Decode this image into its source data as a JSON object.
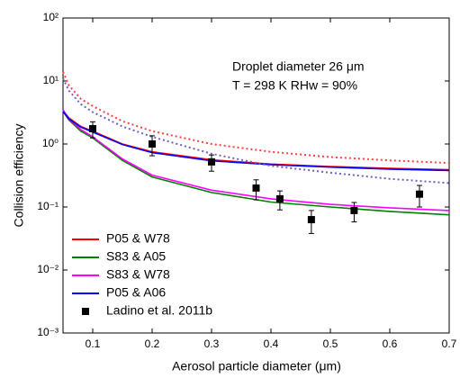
{
  "chart_data": {
    "type": "line",
    "xlabel": "Aerosol particle diameter (μm)",
    "ylabel": "Collision efficiency",
    "annotations": [
      "Droplet diameter 26 μm",
      "T = 298 K RHw = 90%"
    ],
    "yscale": "log",
    "xlim": [
      0.05,
      0.7
    ],
    "ylim": [
      0.001,
      100
    ],
    "xticks": [
      0.1,
      0.2,
      0.3,
      0.4,
      0.5,
      0.6,
      0.7
    ],
    "yticks": [
      {
        "value": 0.001,
        "label": "10⁻³"
      },
      {
        "value": 0.01,
        "label": "10⁻²"
      },
      {
        "value": 0.1,
        "label": "10⁻¹"
      },
      {
        "value": 1,
        "label": "10⁰"
      },
      {
        "value": 10,
        "label": "10¹"
      },
      {
        "value": 100,
        "label": "10²"
      }
    ],
    "x": [
      0.05,
      0.06,
      0.08,
      0.1,
      0.15,
      0.2,
      0.3,
      0.4,
      0.5,
      0.6,
      0.7
    ],
    "series": [
      {
        "name": "P05 & W78",
        "color": "#ff0000",
        "values": [
          3.4,
          2.6,
          1.9,
          1.6,
          1.0,
          0.75,
          0.56,
          0.48,
          0.44,
          0.41,
          0.39
        ]
      },
      {
        "name": "S83 & A05",
        "color": "#008000",
        "values": [
          3.3,
          2.4,
          1.6,
          1.25,
          0.55,
          0.3,
          0.17,
          0.12,
          0.1,
          0.085,
          0.075
        ]
      },
      {
        "name": "S83 & W78",
        "color": "#ff00ff",
        "values": [
          3.5,
          2.5,
          1.7,
          1.3,
          0.58,
          0.32,
          0.185,
          0.135,
          0.11,
          0.097,
          0.088
        ]
      },
      {
        "name": "P05 & A06",
        "color": "#0000ff",
        "values": [
          3.3,
          2.5,
          1.85,
          1.55,
          0.98,
          0.73,
          0.54,
          0.47,
          0.43,
          0.4,
          0.38
        ]
      },
      {
        "color": "#ff4040",
        "dash": true,
        "values": [
          14,
          8.5,
          5.2,
          4.0,
          2.3,
          1.6,
          1.0,
          0.75,
          0.62,
          0.55,
          0.5
        ]
      },
      {
        "color": "#7060c0",
        "dash": true,
        "values": [
          11,
          7,
          4.3,
          3.2,
          1.9,
          1.3,
          0.7,
          0.45,
          0.35,
          0.28,
          0.24
        ]
      },
      {
        "name": "Ladino et al. 2011b",
        "color": "#000000",
        "marker": "square",
        "x": [
          0.1,
          0.2,
          0.3,
          0.375,
          0.415,
          0.468,
          0.54,
          0.65
        ],
        "values": [
          1.75,
          1.0,
          0.52,
          0.2,
          0.135,
          0.063,
          0.088,
          0.16
        ],
        "errors": [
          0.5,
          0.35,
          0.15,
          0.07,
          0.045,
          0.025,
          0.03,
          0.06
        ]
      }
    ]
  }
}
